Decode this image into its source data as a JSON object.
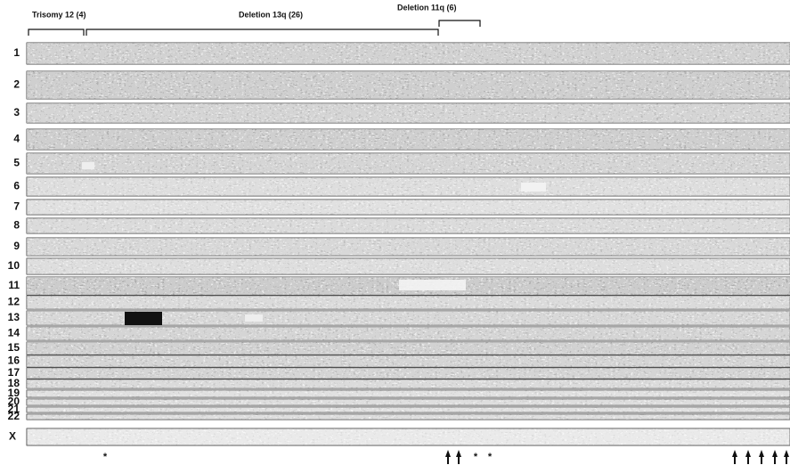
{
  "header": {
    "groups": [
      "Trisomy 12 (4)",
      "Deletion 13q (26)",
      "Deletion 11q (6)"
    ]
  },
  "rows": [
    "1",
    "2",
    "3",
    "4",
    "5",
    "6",
    "7",
    "8",
    "9",
    "10",
    "11",
    "12",
    "13",
    "14",
    "15",
    "16",
    "17",
    "18",
    "19",
    "20",
    "21",
    "22",
    "X"
  ],
  "markers": [
    "*",
    "*",
    "*"
  ]
}
